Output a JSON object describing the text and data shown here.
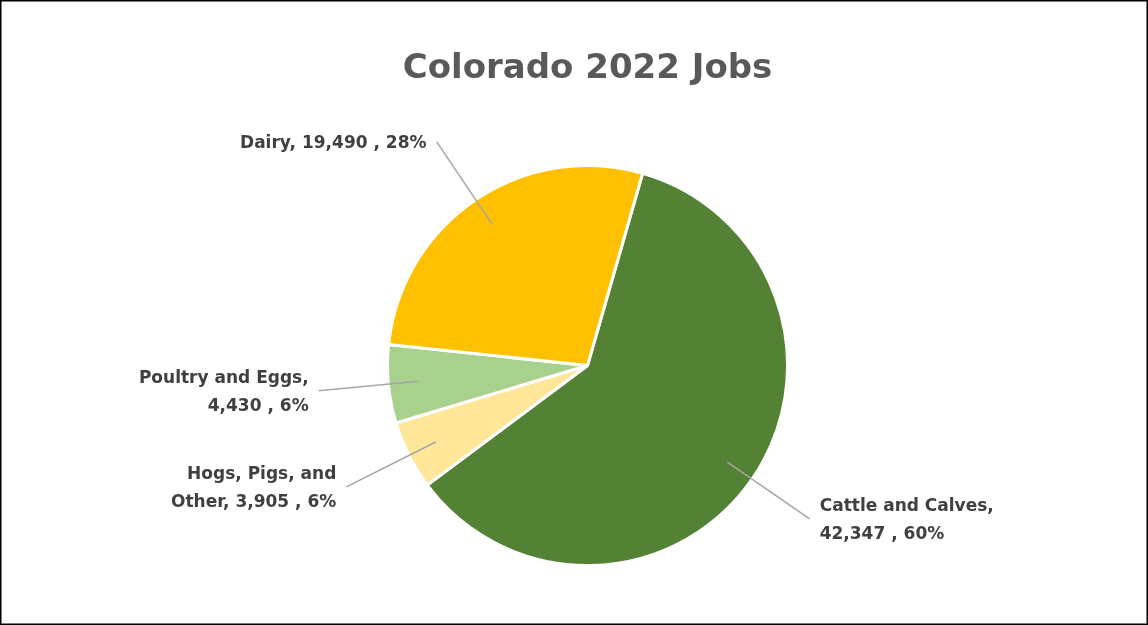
{
  "chart_data": {
    "type": "pie",
    "title": "Colorado 2022 Jobs",
    "categories": [
      "Cattle and Calves",
      "Hogs, Pigs, and Other",
      "Poultry and Eggs",
      "Dairy"
    ],
    "values": [
      42347,
      3905,
      4430,
      19490
    ],
    "colors": [
      "#548235",
      "#ffe699",
      "#a9d18e",
      "#ffc000"
    ],
    "value_labels": [
      ", 42,347 , 60%",
      ", 3,905 , 6%",
      ", 4,430 , 6%",
      ", 19,490 , 28%"
    ]
  }
}
